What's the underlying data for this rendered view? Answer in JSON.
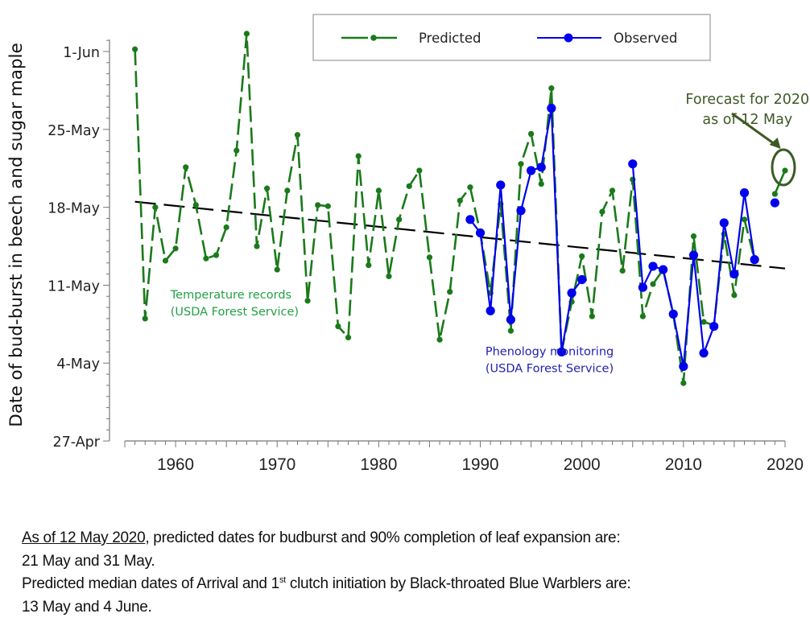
{
  "chart_data": {
    "type": "line",
    "ylabel": "Date of bud-burst in beech and sugar maple",
    "xlabel": "",
    "y_unit": "day of May (1-Jun = 32, 27-Apr = -3)",
    "xlim": [
      1955,
      2020
    ],
    "ylim": [
      -3,
      33
    ],
    "x_ticks": [
      1960,
      1970,
      1980,
      1990,
      2000,
      2010,
      2020
    ],
    "x_tick_labels": [
      "1960",
      "1970",
      "1980",
      "1990",
      "2000",
      "2010",
      "2020"
    ],
    "y_ticks": [
      -3,
      4,
      11,
      18,
      25,
      32
    ],
    "y_tick_labels": [
      "27-Apr",
      "4-May",
      "11-May",
      "18-May",
      "25-May",
      "1-Jun"
    ],
    "grid": false,
    "legend": {
      "placement": "top-center",
      "entries": [
        "Predicted",
        "Observed"
      ]
    },
    "series": [
      {
        "name": "Predicted",
        "color": "#1a7a1a",
        "style": "dashed-with-small-markers",
        "segments": [
          {
            "x": [
              1956,
              1957,
              1958,
              1959,
              1960,
              1961,
              1962,
              1963,
              1964,
              1965,
              1966,
              1967,
              1968,
              1969,
              1970,
              1971,
              1972,
              1973,
              1974,
              1975,
              1976,
              1977,
              1978,
              1979,
              1980,
              1981,
              1982,
              1983,
              1984,
              1985,
              1986,
              1987,
              1988,
              1989,
              1990,
              1991,
              1992,
              1993,
              1994,
              1995,
              1996,
              1997,
              1998,
              1999,
              2000,
              2001,
              2002,
              2003,
              2004,
              2005,
              2006,
              2007,
              2008,
              2009,
              2010,
              2011,
              2012,
              2013,
              2014,
              2015,
              2016,
              2017
            ],
            "y": [
              32.2,
              8.0,
              18.0,
              13.2,
              14.3,
              21.6,
              18.2,
              13.4,
              13.7,
              16.2,
              23.1,
              33.6,
              14.5,
              19.7,
              12.4,
              19.5,
              24.5,
              9.6,
              18.2,
              18.1,
              7.3,
              6.3,
              22.6,
              12.8,
              19.5,
              11.8,
              16.9,
              19.9,
              21.3,
              13.5,
              6.1,
              10.4,
              18.6,
              19.8,
              15.7,
              10.3,
              18.3,
              6.9,
              21.9,
              24.6,
              20.1,
              28.7,
              5.0,
              9.5,
              13.6,
              8.2,
              17.6,
              19.5,
              12.3,
              20.5,
              8.2,
              11.1,
              12.4,
              8.4,
              2.2,
              15.4,
              7.7,
              7.4,
              15.6,
              10.1,
              16.9,
              13.3
            ]
          },
          {
            "x": [
              2019,
              2020
            ],
            "y": [
              19.2,
              21.3
            ],
            "solid": true
          }
        ]
      },
      {
        "name": "Observed",
        "color": "#0000ee",
        "style": "solid-with-large-markers",
        "segments": [
          {
            "x": [
              1989,
              1990,
              1991,
              1992,
              1993,
              1994,
              1995,
              1996,
              1997,
              1998,
              1999,
              2000
            ],
            "y": [
              16.9,
              15.7,
              8.7,
              20.0,
              7.9,
              17.7,
              21.3,
              21.6,
              26.9,
              5.0,
              10.3,
              11.5
            ]
          },
          {
            "x": [
              2005,
              2006,
              2007,
              2008,
              2009,
              2010,
              2011,
              2012,
              2013,
              2014,
              2015,
              2016,
              2017
            ],
            "y": [
              21.9,
              10.8,
              12.7,
              12.4,
              8.4,
              3.7,
              13.7,
              4.9,
              7.3,
              16.6,
              12.0,
              19.3,
              13.3
            ]
          },
          {
            "x": [
              2019
            ],
            "y": [
              18.4
            ]
          }
        ]
      },
      {
        "name": "Trend",
        "color": "#000000",
        "style": "long-dash",
        "x": [
          1956,
          2020
        ],
        "y": [
          18.5,
          12.5
        ]
      }
    ],
    "annotations": [
      {
        "text_lines": [
          "Temperature records",
          "(USDA Forest Service)"
        ],
        "color": "#22a045",
        "anchor_x": 1959.5,
        "anchor_y": 9.8
      },
      {
        "text_lines": [
          "Phenology monitoring",
          "(USDA Forest Service)"
        ],
        "color": "#1f1fb0",
        "anchor_x": 1990.5,
        "anchor_y": 4.7
      },
      {
        "text_lines": [
          "Forecast for 2020",
          "as of 12 May"
        ],
        "color": "#3d5a26",
        "anchor_x": 2016.3,
        "anchor_y": 27.3,
        "arrow_to": [
          2019.5,
          23.0
        ],
        "circle_around": [
          2020,
          21.3
        ]
      }
    ]
  },
  "caption": {
    "line1_underlined": "As of 12 May 2020",
    "line1_rest": ", predicted dates for budburst and 90% completion of leaf expansion are:",
    "line2": "21 May and 31 May.",
    "line3_part1": "Predicted median dates of Arrival and 1",
    "line3_sup": "st",
    "line3_part2": " clutch initiation by Black-throated Blue Warblers are:",
    "line4": "13 May and 4 June."
  }
}
